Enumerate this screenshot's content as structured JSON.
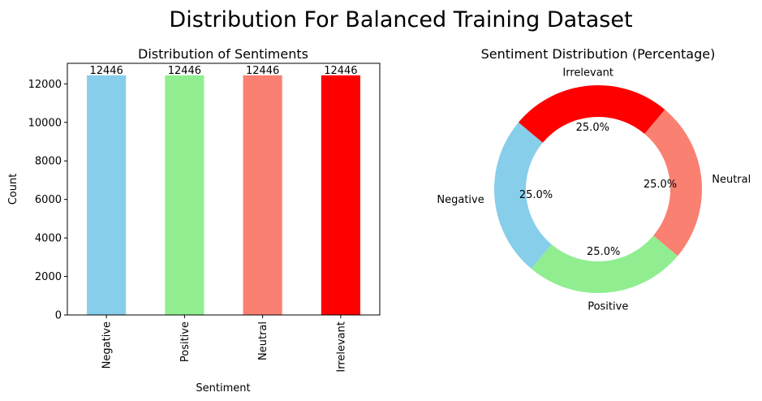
{
  "suptitle": "Distribution For Balanced Training Dataset",
  "chart_data": [
    {
      "type": "bar",
      "title": "Distribution of Sentiments",
      "xlabel": "Sentiment",
      "ylabel": "Count",
      "categories": [
        "Negative",
        "Positive",
        "Neutral",
        "Irrelevant"
      ],
      "values": [
        12446,
        12446,
        12446,
        12446
      ],
      "data_labels": [
        "12446",
        "12446",
        "12446",
        "12446"
      ],
      "colors": [
        "#87ceeb",
        "#90ee90",
        "#fa8072",
        "#ff0000"
      ],
      "ylim": [
        0,
        13068
      ],
      "yticks": [
        0,
        2000,
        4000,
        6000,
        8000,
        10000,
        12000
      ],
      "grid": false,
      "xtick_rotation": "vertical"
    },
    {
      "type": "pie",
      "style": "donut",
      "title": "Sentiment Distribution (Percentage)",
      "categories": [
        "Negative",
        "Positive",
        "Neutral",
        "Irrelevant"
      ],
      "values": [
        12446,
        12446,
        12446,
        12446
      ],
      "percent_labels": [
        "25.0%",
        "25.0%",
        "25.0%",
        "25.0%"
      ],
      "colors": [
        "#87ceeb",
        "#90ee90",
        "#fa8072",
        "#ff0000"
      ],
      "start_angle_deg": 140,
      "direction": "counterclockwise"
    }
  ]
}
